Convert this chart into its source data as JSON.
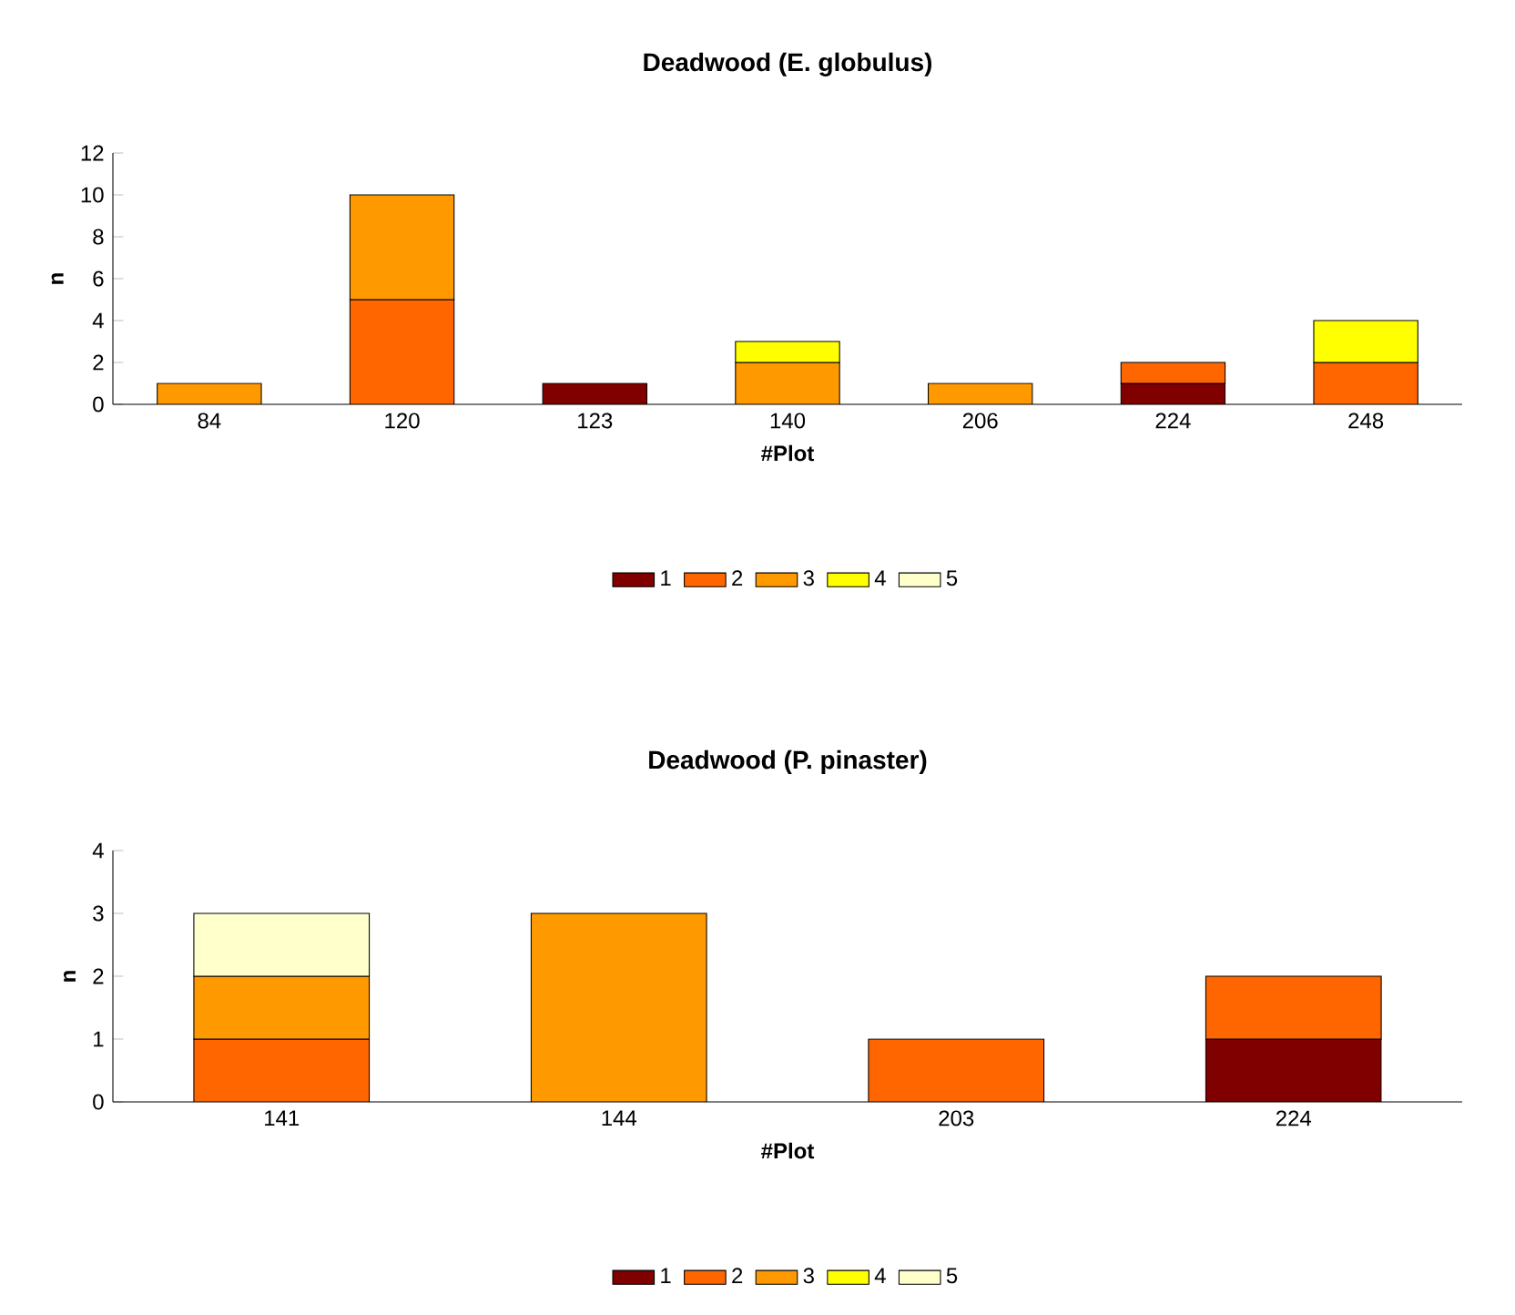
{
  "chart_data": [
    {
      "type": "bar",
      "stacked": true,
      "title": "Deadwood (E. globulus)",
      "xlabel": "#Plot",
      "ylabel": "n",
      "categories": [
        "84",
        "120",
        "123",
        "140",
        "206",
        "224",
        "248"
      ],
      "series": [
        {
          "name": "1",
          "color": "#800000",
          "values": [
            null,
            null,
            1,
            null,
            null,
            1,
            null
          ]
        },
        {
          "name": "2",
          "color": "#ff6600",
          "values": [
            null,
            5,
            null,
            null,
            null,
            1,
            2
          ]
        },
        {
          "name": "3",
          "color": "#ff9900",
          "values": [
            1,
            5,
            null,
            2,
            1,
            null,
            null
          ]
        },
        {
          "name": "4",
          "color": "#ffff00",
          "values": [
            null,
            null,
            null,
            1,
            null,
            null,
            2
          ]
        },
        {
          "name": "5",
          "color": "#ffffcc",
          "values": [
            null,
            null,
            null,
            null,
            null,
            null,
            null
          ]
        }
      ],
      "ylim": [
        0,
        12
      ],
      "yticks": [
        0,
        2,
        4,
        6,
        8,
        10,
        12
      ],
      "legend": "bottom",
      "grid": false
    },
    {
      "type": "bar",
      "stacked": true,
      "title": "Deadwood (P. pinaster)",
      "xlabel": "#Plot",
      "ylabel": "n",
      "categories": [
        "141",
        "144",
        "203",
        "224"
      ],
      "series": [
        {
          "name": "1",
          "color": "#800000",
          "values": [
            null,
            null,
            null,
            1
          ]
        },
        {
          "name": "2",
          "color": "#ff6600",
          "values": [
            1,
            null,
            1,
            1
          ]
        },
        {
          "name": "3",
          "color": "#ff9900",
          "values": [
            1,
            3,
            null,
            null
          ]
        },
        {
          "name": "4",
          "color": "#ffff00",
          "values": [
            null,
            null,
            null,
            null
          ]
        },
        {
          "name": "5",
          "color": "#ffffcc",
          "values": [
            1,
            null,
            null,
            null
          ]
        }
      ],
      "ylim": [
        0,
        4
      ],
      "yticks": [
        0,
        1,
        2,
        3,
        4
      ],
      "legend": "bottom",
      "grid": false
    }
  ]
}
